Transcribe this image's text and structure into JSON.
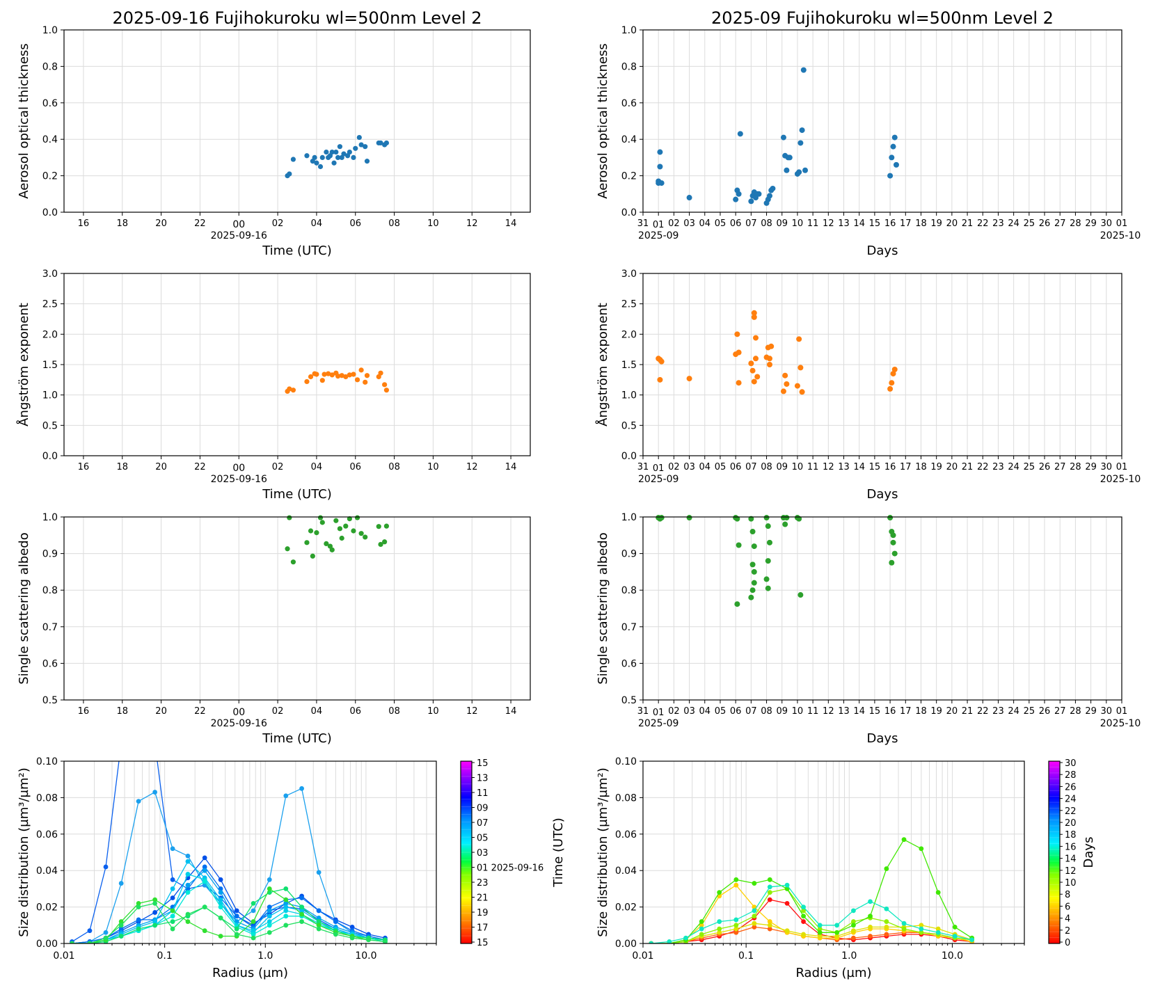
{
  "titles": {
    "left": "2025-09-16  Fujihokuroku  wl=500nm  Level 2",
    "right": "2025-09  Fujihokuroku  wl=500nm  Level 2"
  },
  "labels": {
    "aot": "Aerosol optical thickness",
    "angstrom": "Ångström exponent",
    "ssa": "Single scattering albedo",
    "time_utc": "Time (UTC)",
    "days": "Days",
    "radius": "Radius (µm)",
    "size_dist": "Size distribution (µm³/µm²)"
  },
  "hour_ticks": [
    "16",
    "18",
    "20",
    "22",
    "00",
    "02",
    "04",
    "06",
    "08",
    "10",
    "12",
    "14"
  ],
  "hour_date": "2025-09-16",
  "day_ticks": [
    "31",
    "01",
    "02",
    "03",
    "04",
    "05",
    "06",
    "07",
    "08",
    "09",
    "10",
    "11",
    "12",
    "13",
    "14",
    "15",
    "16",
    "17",
    "18",
    "19",
    "20",
    "21",
    "22",
    "23",
    "24",
    "25",
    "26",
    "27",
    "28",
    "29",
    "30",
    "01"
  ],
  "month_start": "2025-09",
  "month_end": "2025-10",
  "colorbar_left": {
    "label": "Time (UTC)",
    "ticks": [
      "15",
      "13",
      "11",
      "09",
      "07",
      "05",
      "03",
      "01 2025-09-16",
      "23",
      "21",
      "19",
      "17",
      "15"
    ]
  },
  "colorbar_right": {
    "label": "Days",
    "ticks": [
      "30",
      "28",
      "26",
      "24",
      "22",
      "20",
      "18",
      "16",
      "14",
      "12",
      "10",
      "8",
      "6",
      "4",
      "2",
      "0"
    ]
  },
  "colors": {
    "aot": "#1f77b4",
    "angstrom": "#ff7f0e",
    "ssa": "#2ca02c"
  },
  "chart_data": [
    {
      "type": "scatter",
      "name": "daily-aot",
      "ylabel": "Aerosol optical thickness",
      "xlabel": "Time (UTC)",
      "xlim_hours": [
        15,
        39
      ],
      "ylim": [
        0,
        1.0
      ],
      "yticks": [
        "0.0",
        "0.2",
        "0.4",
        "0.6",
        "0.8",
        "1.0"
      ],
      "x": [
        26.5,
        26.6,
        26.8,
        27.5,
        27.8,
        27.9,
        28.0,
        28.2,
        28.3,
        28.5,
        28.6,
        28.7,
        28.8,
        28.9,
        29.0,
        29.1,
        29.2,
        29.3,
        29.4,
        29.6,
        29.7,
        29.9,
        30.0,
        30.2,
        30.3,
        30.5,
        30.6,
        31.2,
        31.3,
        31.5,
        31.6
      ],
      "y": [
        0.2,
        0.21,
        0.29,
        0.31,
        0.28,
        0.3,
        0.27,
        0.25,
        0.3,
        0.33,
        0.3,
        0.31,
        0.33,
        0.27,
        0.33,
        0.3,
        0.36,
        0.3,
        0.32,
        0.31,
        0.33,
        0.3,
        0.35,
        0.41,
        0.37,
        0.36,
        0.28,
        0.38,
        0.38,
        0.37,
        0.38
      ]
    },
    {
      "type": "scatter",
      "name": "monthly-aot",
      "ylabel": "Aerosol optical thickness",
      "xlabel": "Days",
      "xlim_days": [
        0,
        31
      ],
      "ylim": [
        0,
        1.0
      ],
      "yticks": [
        "0.0",
        "0.2",
        "0.4",
        "0.6",
        "0.8",
        "1.0"
      ],
      "x": [
        1.0,
        1.0,
        1.1,
        1.1,
        1.2,
        3.0,
        6.0,
        6.1,
        6.2,
        6.3,
        7.0,
        7.1,
        7.2,
        7.3,
        7.4,
        7.5,
        8.0,
        8.1,
        8.2,
        8.3,
        8.4,
        9.1,
        9.2,
        9.3,
        9.4,
        9.5,
        10.0,
        10.1,
        10.2,
        10.3,
        10.4,
        10.5,
        16.0,
        16.1,
        16.2,
        16.3,
        16.4
      ],
      "y": [
        0.16,
        0.17,
        0.33,
        0.25,
        0.16,
        0.08,
        0.07,
        0.12,
        0.1,
        0.43,
        0.06,
        0.09,
        0.11,
        0.08,
        0.1,
        0.1,
        0.05,
        0.07,
        0.09,
        0.12,
        0.13,
        0.41,
        0.31,
        0.23,
        0.3,
        0.3,
        0.21,
        0.22,
        0.38,
        0.45,
        0.78,
        0.23,
        0.2,
        0.3,
        0.36,
        0.41,
        0.26
      ]
    },
    {
      "type": "scatter",
      "name": "daily-angstrom",
      "ylabel": "Ångström exponent",
      "xlabel": "Time (UTC)",
      "xlim_hours": [
        15,
        39
      ],
      "ylim": [
        0,
        3.0
      ],
      "yticks": [
        "0.0",
        "0.5",
        "1.0",
        "1.5",
        "2.0",
        "2.5",
        "3.0"
      ],
      "x": [
        26.5,
        26.6,
        26.8,
        27.5,
        27.7,
        27.9,
        28.0,
        28.3,
        28.4,
        28.6,
        28.8,
        29.0,
        29.1,
        29.3,
        29.5,
        29.7,
        29.9,
        30.1,
        30.3,
        30.5,
        30.6,
        31.2,
        31.3,
        31.5,
        31.6
      ],
      "y": [
        1.06,
        1.1,
        1.08,
        1.22,
        1.3,
        1.35,
        1.34,
        1.24,
        1.34,
        1.35,
        1.33,
        1.36,
        1.31,
        1.32,
        1.3,
        1.33,
        1.34,
        1.25,
        1.41,
        1.21,
        1.32,
        1.3,
        1.36,
        1.17,
        1.08
      ]
    },
    {
      "type": "scatter",
      "name": "monthly-angstrom",
      "ylabel": "Ångström exponent",
      "xlabel": "Days",
      "xlim_days": [
        0,
        31
      ],
      "ylim": [
        0,
        3.0
      ],
      "yticks": [
        "0.0",
        "0.5",
        "1.0",
        "1.5",
        "2.0",
        "2.5",
        "3.0"
      ],
      "x": [
        1.0,
        1.1,
        1.2,
        1.1,
        3.0,
        6.0,
        6.1,
        6.2,
        6.2,
        7.0,
        7.1,
        7.2,
        7.2,
        7.3,
        7.3,
        7.4,
        7.2,
        8.0,
        8.1,
        8.2,
        8.3,
        8.2,
        9.1,
        9.2,
        9.3,
        10.0,
        10.1,
        10.2,
        10.3,
        16.0,
        16.1,
        16.2,
        16.3
      ],
      "y": [
        1.6,
        1.58,
        1.55,
        1.25,
        1.27,
        1.67,
        2.0,
        1.2,
        1.7,
        1.52,
        1.4,
        2.35,
        2.28,
        1.94,
        1.6,
        1.3,
        1.22,
        1.62,
        1.78,
        1.5,
        1.8,
        1.6,
        1.06,
        1.32,
        1.18,
        1.15,
        1.92,
        1.45,
        1.05,
        1.1,
        1.2,
        1.35,
        1.42
      ]
    },
    {
      "type": "scatter",
      "name": "daily-ssa",
      "ylabel": "Single scattering albedo",
      "xlabel": "Time (UTC)",
      "xlim_hours": [
        15,
        39
      ],
      "ylim": [
        0.5,
        1.0
      ],
      "yticks": [
        "0.5",
        "0.6",
        "0.7",
        "0.8",
        "0.9",
        "1.0"
      ],
      "x": [
        26.5,
        26.6,
        26.8,
        27.5,
        27.7,
        27.8,
        28.0,
        28.2,
        28.3,
        28.5,
        28.7,
        28.8,
        29.0,
        29.2,
        29.3,
        29.5,
        29.7,
        29.9,
        30.1,
        30.3,
        30.5,
        31.2,
        31.3,
        31.5,
        31.6
      ],
      "y": [
        0.913,
        0.998,
        0.877,
        0.93,
        0.962,
        0.893,
        0.957,
        0.998,
        0.985,
        0.927,
        0.92,
        0.91,
        0.99,
        0.968,
        0.942,
        0.975,
        0.995,
        0.962,
        0.998,
        0.955,
        0.945,
        0.974,
        0.925,
        0.932,
        0.975
      ]
    },
    {
      "type": "scatter",
      "name": "monthly-ssa",
      "ylabel": "Single scattering albedo",
      "xlabel": "Days",
      "xlim_days": [
        0,
        31
      ],
      "ylim": [
        0.5,
        1.0
      ],
      "yticks": [
        "0.5",
        "0.6",
        "0.7",
        "0.8",
        "0.9",
        "1.0"
      ],
      "x": [
        1.0,
        1.1,
        1.2,
        3.0,
        6.0,
        6.1,
        6.2,
        6.1,
        7.0,
        7.1,
        7.2,
        7.1,
        7.2,
        7.2,
        7.1,
        7.0,
        8.0,
        8.1,
        8.2,
        8.1,
        8.0,
        8.1,
        9.1,
        9.2,
        9.3,
        10.0,
        10.1,
        10.2,
        16.0,
        16.1,
        16.2,
        16.3,
        16.1,
        16.2
      ],
      "y": [
        0.998,
        0.995,
        0.998,
        0.998,
        0.998,
        0.995,
        0.923,
        0.762,
        0.995,
        0.96,
        0.92,
        0.87,
        0.85,
        0.82,
        0.8,
        0.78,
        0.998,
        0.975,
        0.93,
        0.88,
        0.83,
        0.805,
        0.998,
        0.98,
        0.998,
        0.998,
        0.995,
        0.787,
        0.998,
        0.96,
        0.93,
        0.9,
        0.875,
        0.95
      ]
    },
    {
      "type": "line",
      "name": "daily-size-distribution",
      "xlabel": "Radius (µm)",
      "ylabel": "Size distribution (µm³/µm²)",
      "xscale": "log",
      "xlim": [
        0.01,
        50
      ],
      "ylim": [
        0,
        0.1
      ],
      "xticks": [
        "0.01",
        "0.1",
        "1.0",
        "10.0"
      ],
      "yticks": [
        "0.00",
        "0.02",
        "0.04",
        "0.06",
        "0.08",
        "0.10"
      ],
      "radius": [
        0.012,
        0.018,
        0.026,
        0.037,
        0.055,
        0.08,
        0.12,
        0.17,
        0.25,
        0.36,
        0.52,
        0.76,
        1.1,
        1.6,
        2.3,
        3.4,
        5.0,
        7.3,
        10.6,
        15.5
      ],
      "series": [
        {
          "color": "#0a60ee",
          "values": [
            0.001,
            0.007,
            0.042,
            0.11,
            0.13,
            0.11,
            0.035,
            0.03,
            0.032,
            0.025,
            0.015,
            0.01,
            0.018,
            0.02,
            0.019,
            0.013,
            0.008,
            0.005,
            0.003,
            0.002
          ]
        },
        {
          "color": "#1aa0ee",
          "values": [
            0.0,
            0.001,
            0.006,
            0.033,
            0.078,
            0.083,
            0.052,
            0.048,
            0.032,
            0.022,
            0.012,
            0.018,
            0.035,
            0.081,
            0.085,
            0.039,
            0.012,
            0.006,
            0.004,
            0.002
          ]
        },
        {
          "color": "#0050e8",
          "values": [
            0.0,
            0.001,
            0.003,
            0.007,
            0.012,
            0.017,
            0.025,
            0.036,
            0.047,
            0.035,
            0.018,
            0.011,
            0.016,
            0.022,
            0.026,
            0.018,
            0.013,
            0.009,
            0.005,
            0.003
          ]
        },
        {
          "color": "#0070f0",
          "values": [
            0.0,
            0.001,
            0.003,
            0.008,
            0.013,
            0.013,
            0.02,
            0.03,
            0.042,
            0.03,
            0.015,
            0.009,
            0.02,
            0.024,
            0.025,
            0.018,
            0.012,
            0.007,
            0.004,
            0.002
          ]
        },
        {
          "color": "#00a0f0",
          "values": [
            0.0,
            0.0,
            0.002,
            0.006,
            0.01,
            0.013,
            0.018,
            0.032,
            0.04,
            0.028,
            0.012,
            0.008,
            0.018,
            0.022,
            0.02,
            0.014,
            0.009,
            0.006,
            0.003,
            0.002
          ]
        },
        {
          "color": "#00c0f0",
          "values": [
            0.0,
            0.0,
            0.002,
            0.005,
            0.009,
            0.012,
            0.03,
            0.045,
            0.036,
            0.024,
            0.01,
            0.006,
            0.015,
            0.02,
            0.018,
            0.012,
            0.008,
            0.005,
            0.003,
            0.002
          ]
        },
        {
          "color": "#00d0e8",
          "values": [
            0.0,
            0.0,
            0.002,
            0.004,
            0.007,
            0.01,
            0.018,
            0.038,
            0.035,
            0.022,
            0.01,
            0.007,
            0.012,
            0.018,
            0.016,
            0.011,
            0.007,
            0.005,
            0.003,
            0.002
          ]
        },
        {
          "color": "#00e8d8",
          "values": [
            0.0,
            0.0,
            0.001,
            0.004,
            0.007,
            0.01,
            0.015,
            0.028,
            0.034,
            0.02,
            0.009,
            0.005,
            0.01,
            0.015,
            0.015,
            0.01,
            0.007,
            0.004,
            0.003,
            0.001
          ]
        },
        {
          "color": "#10e070",
          "values": [
            0.0,
            0.0,
            0.001,
            0.004,
            0.008,
            0.01,
            0.012,
            0.015,
            0.02,
            0.014,
            0.008,
            0.022,
            0.028,
            0.03,
            0.02,
            0.012,
            0.007,
            0.004,
            0.003,
            0.002
          ]
        },
        {
          "color": "#30e030",
          "values": [
            0.0,
            0.0,
            0.002,
            0.012,
            0.022,
            0.024,
            0.018,
            0.012,
            0.007,
            0.004,
            0.004,
            0.012,
            0.03,
            0.024,
            0.016,
            0.01,
            0.006,
            0.004,
            0.002,
            0.001
          ]
        },
        {
          "color": "#20e060",
          "values": [
            0.0,
            0.0,
            0.003,
            0.01,
            0.02,
            0.022,
            0.008,
            0.016,
            0.02,
            0.014,
            0.005,
            0.003,
            0.006,
            0.01,
            0.012,
            0.008,
            0.005,
            0.003,
            0.002,
            0.001
          ]
        }
      ]
    },
    {
      "type": "line",
      "name": "monthly-size-distribution",
      "xlabel": "Radius (µm)",
      "ylabel": "Size distribution (µm³/µm²)",
      "xscale": "log",
      "xlim": [
        0.01,
        50
      ],
      "ylim": [
        0,
        0.1
      ],
      "xticks": [
        "0.01",
        "0.1",
        "1.0",
        "10.0"
      ],
      "yticks": [
        "0.00",
        "0.02",
        "0.04",
        "0.06",
        "0.08",
        "0.10"
      ],
      "radius": [
        0.012,
        0.018,
        0.026,
        0.037,
        0.055,
        0.08,
        0.12,
        0.17,
        0.25,
        0.36,
        0.52,
        0.76,
        1.1,
        1.6,
        2.3,
        3.4,
        5.0,
        7.3,
        10.6,
        15.5
      ],
      "series": [
        {
          "color": "#ff1010",
          "values": [
            0.0,
            0.0,
            0.001,
            0.002,
            0.004,
            0.007,
            0.014,
            0.024,
            0.022,
            0.012,
            0.005,
            0.003,
            0.002,
            0.003,
            0.004,
            0.005,
            0.005,
            0.004,
            0.002,
            0.001
          ]
        },
        {
          "color": "#ff6010",
          "values": [
            0.0,
            0.0,
            0.001,
            0.003,
            0.005,
            0.006,
            0.009,
            0.008,
            0.006,
            0.004,
            0.003,
            0.002,
            0.003,
            0.004,
            0.005,
            0.006,
            0.006,
            0.005,
            0.003,
            0.001
          ]
        },
        {
          "color": "#ffd000",
          "values": [
            0.0,
            0.0,
            0.002,
            0.01,
            0.026,
            0.032,
            0.02,
            0.012,
            0.006,
            0.004,
            0.003,
            0.003,
            0.006,
            0.008,
            0.008,
            0.007,
            0.006,
            0.004,
            0.003,
            0.001
          ]
        },
        {
          "color": "#e0e000",
          "values": [
            0.0,
            0.0,
            0.001,
            0.004,
            0.006,
            0.008,
            0.011,
            0.01,
            0.007,
            0.005,
            0.004,
            0.004,
            0.007,
            0.009,
            0.009,
            0.009,
            0.01,
            0.008,
            0.005,
            0.002
          ]
        },
        {
          "color": "#90f000",
          "values": [
            0.0,
            0.0,
            0.001,
            0.005,
            0.008,
            0.01,
            0.015,
            0.028,
            0.03,
            0.018,
            0.008,
            0.006,
            0.012,
            0.014,
            0.012,
            0.008,
            0.006,
            0.005,
            0.003,
            0.002
          ]
        },
        {
          "color": "#40e800",
          "values": [
            0.0,
            0.0,
            0.002,
            0.012,
            0.028,
            0.035,
            0.033,
            0.035,
            0.03,
            0.015,
            0.006,
            0.006,
            0.01,
            0.015,
            0.041,
            0.057,
            0.052,
            0.028,
            0.009,
            0.003
          ]
        },
        {
          "color": "#10e8c0",
          "values": [
            0.0,
            0.001,
            0.003,
            0.008,
            0.012,
            0.013,
            0.018,
            0.031,
            0.032,
            0.02,
            0.01,
            0.01,
            0.018,
            0.023,
            0.019,
            0.011,
            0.008,
            0.006,
            0.004,
            0.002
          ]
        }
      ]
    }
  ]
}
